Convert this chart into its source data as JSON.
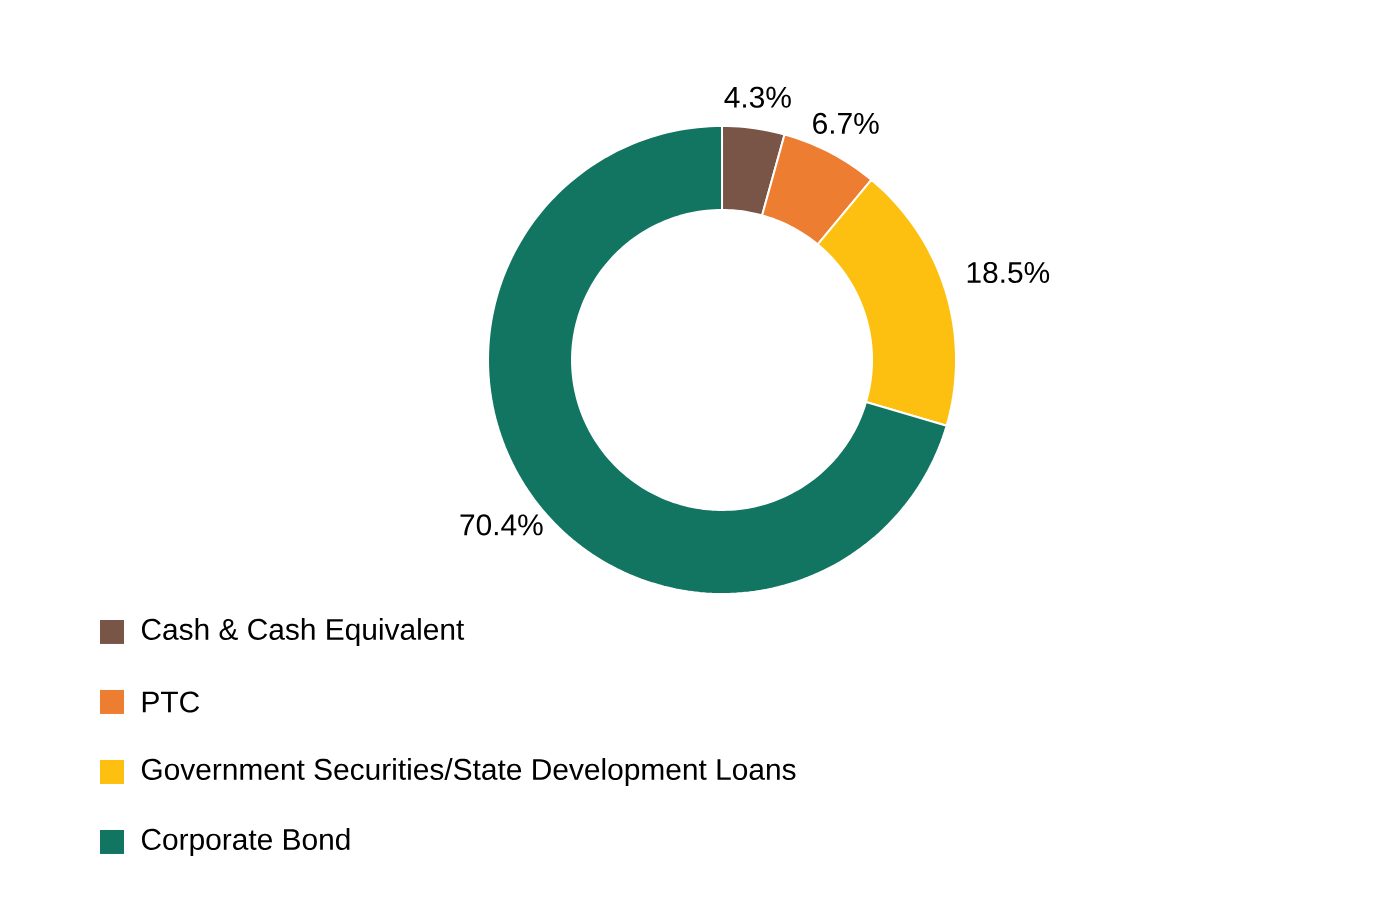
{
  "chart_data": {
    "type": "donut",
    "categories": [
      "Cash & Cash Equivalent",
      "PTC",
      "Government Securities/State Development Loans",
      "Corporate Bond"
    ],
    "values": [
      4.3,
      6.7,
      18.5,
      70.4
    ],
    "colors": [
      "#795548",
      "#ed7d31",
      "#fdc010",
      "#127562"
    ],
    "value_labels": [
      "4.3%",
      "6.7%",
      "18.5%",
      "70.4%"
    ],
    "legend": "bottom"
  }
}
